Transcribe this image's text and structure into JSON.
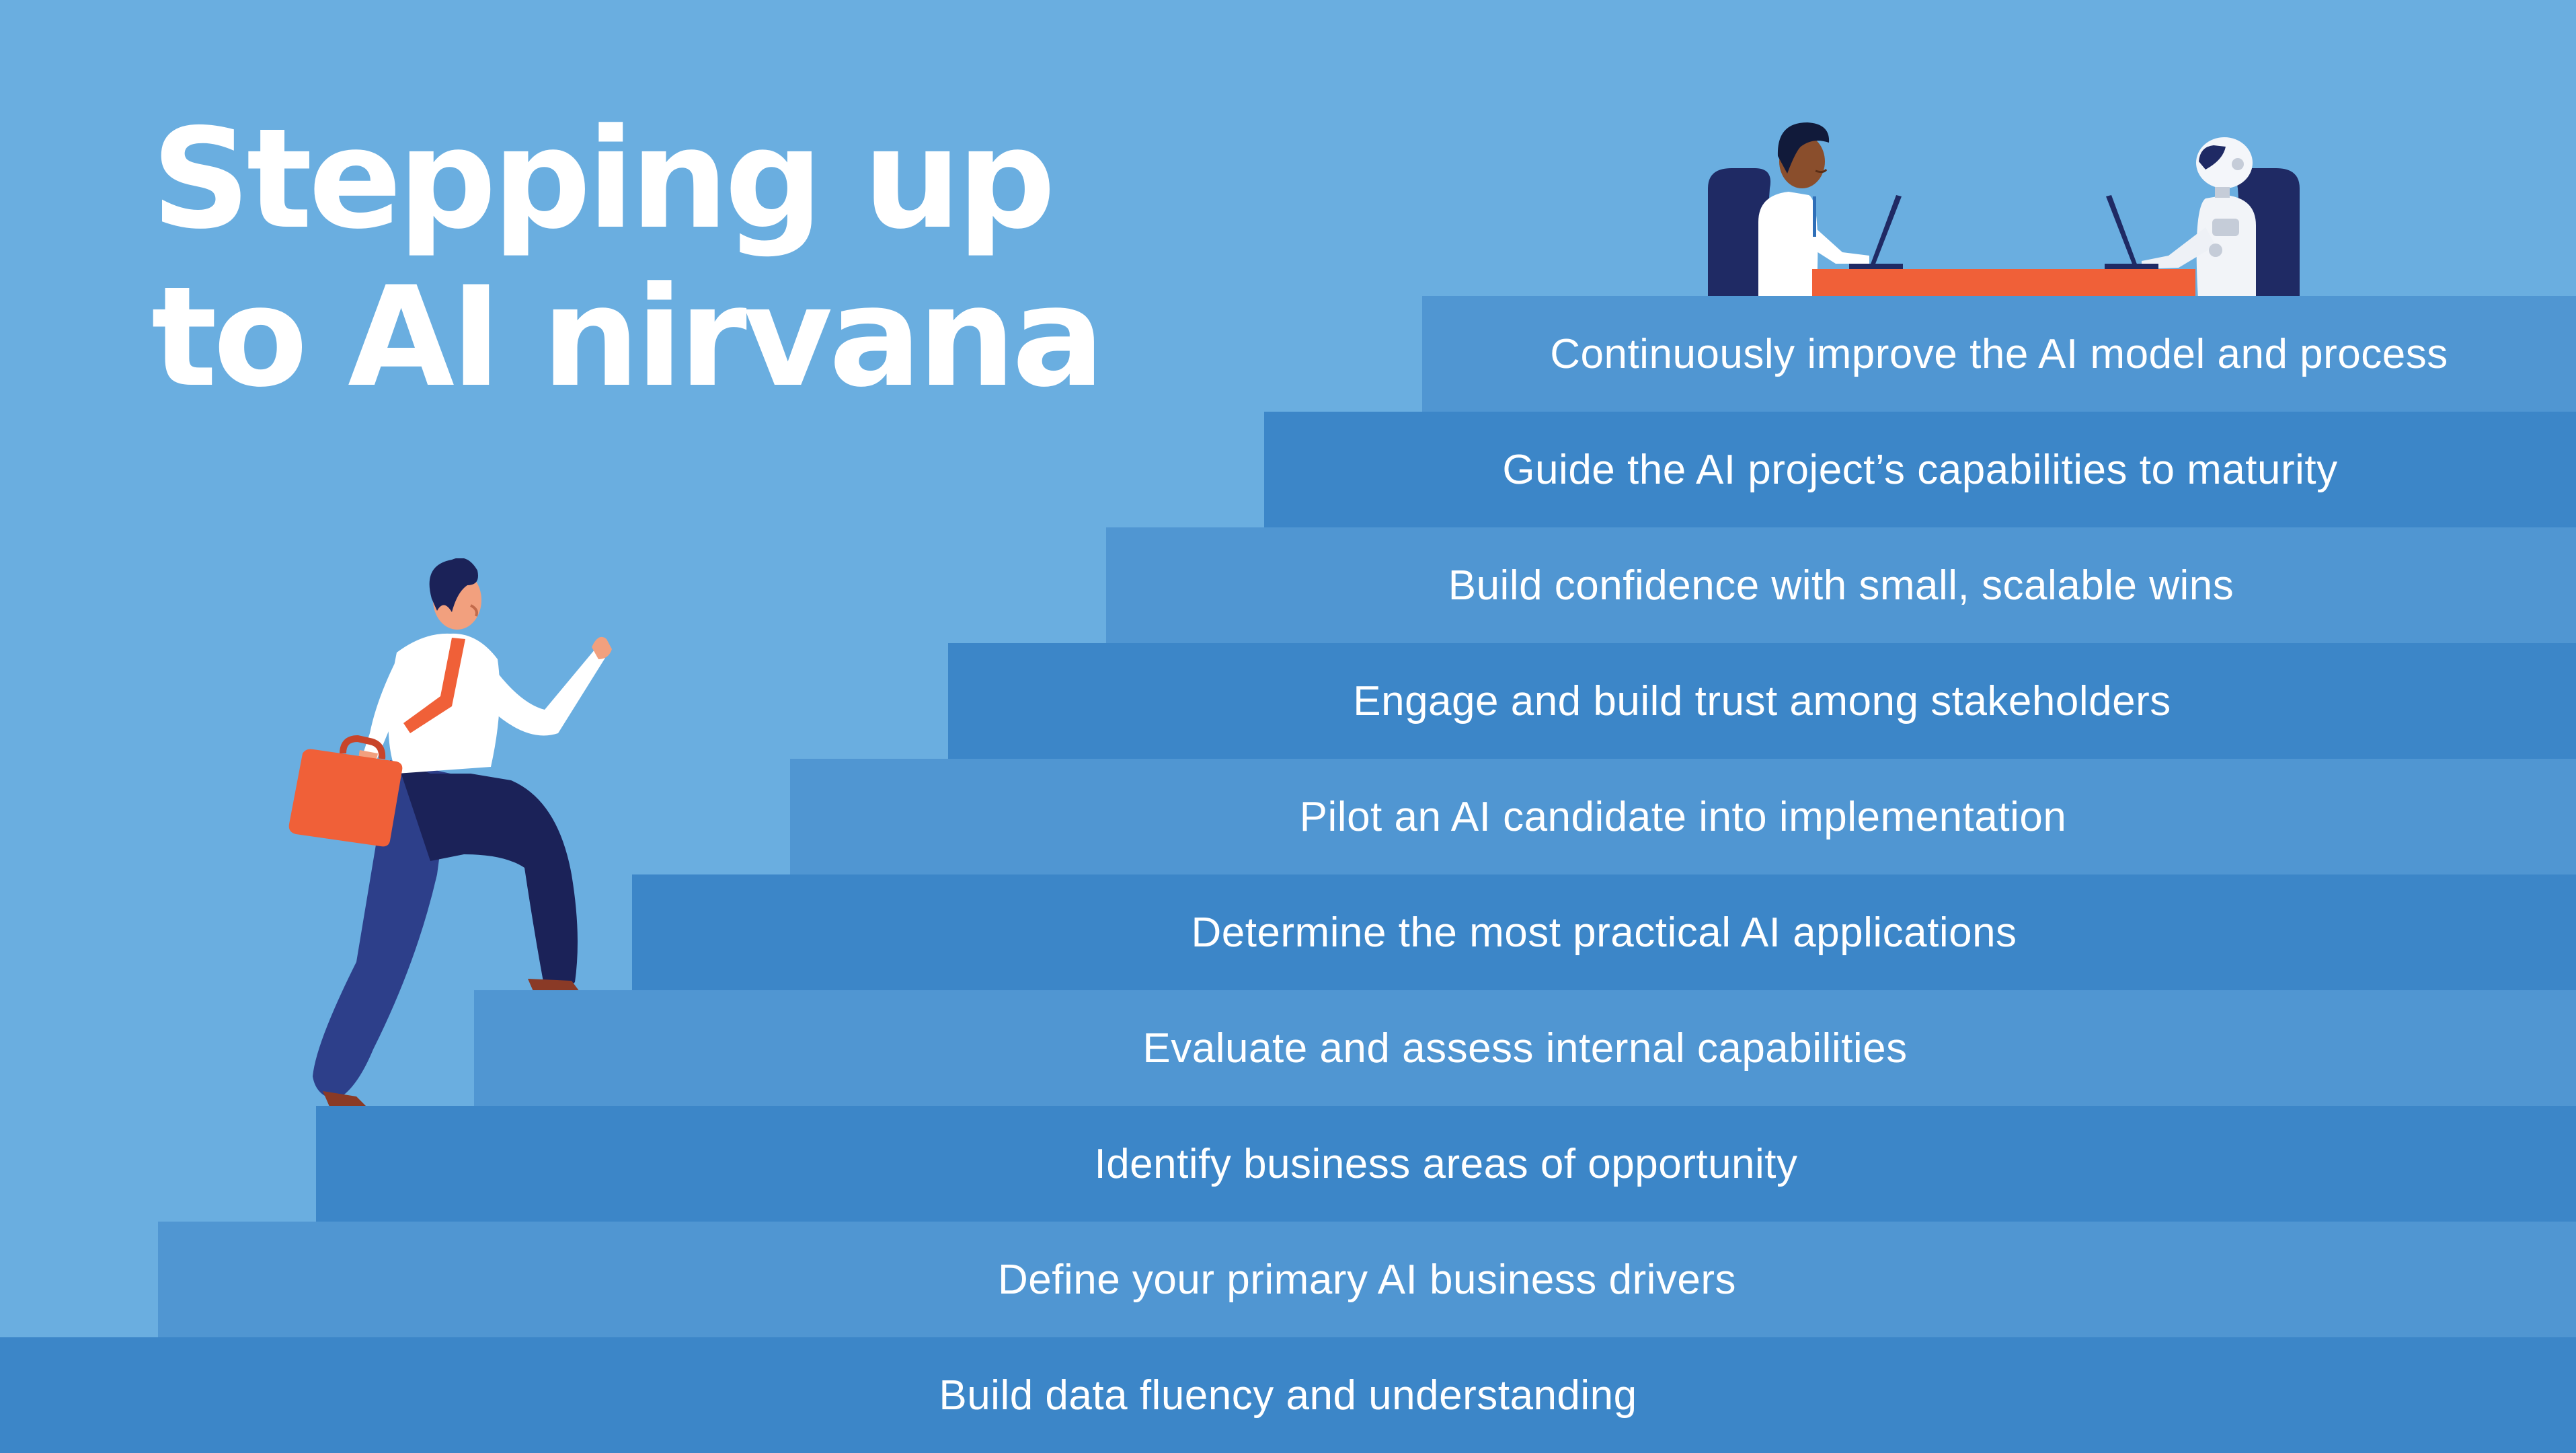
{
  "title": {
    "line1": "Stepping up",
    "line2": "to AI nirvana"
  },
  "steps": [
    {
      "label": "Build data fluency and understanding"
    },
    {
      "label": "Define your primary AI business drivers"
    },
    {
      "label": "Identify business areas of opportunity"
    },
    {
      "label": "Evaluate and assess internal capabilities"
    },
    {
      "label": "Determine the most practical AI applications"
    },
    {
      "label": "Pilot an AI candidate into implementation"
    },
    {
      "label": "Engage and build trust among stakeholders"
    },
    {
      "label": "Build confidence with small, scalable wins"
    },
    {
      "label": "Guide the AI project’s capabilities to maturity"
    },
    {
      "label": "Continuously improve the AI model and process"
    }
  ],
  "colors": {
    "background": "#6aaee0",
    "step_dark": "#3c86c8",
    "step_light": "#5096d2",
    "accent_orange": "#f06038",
    "navy": "#1f2a64",
    "text": "#ffffff"
  },
  "illustrations": {
    "climber": "businessman-climbing-icon",
    "top": "human-and-robot-at-laptops-icon"
  }
}
